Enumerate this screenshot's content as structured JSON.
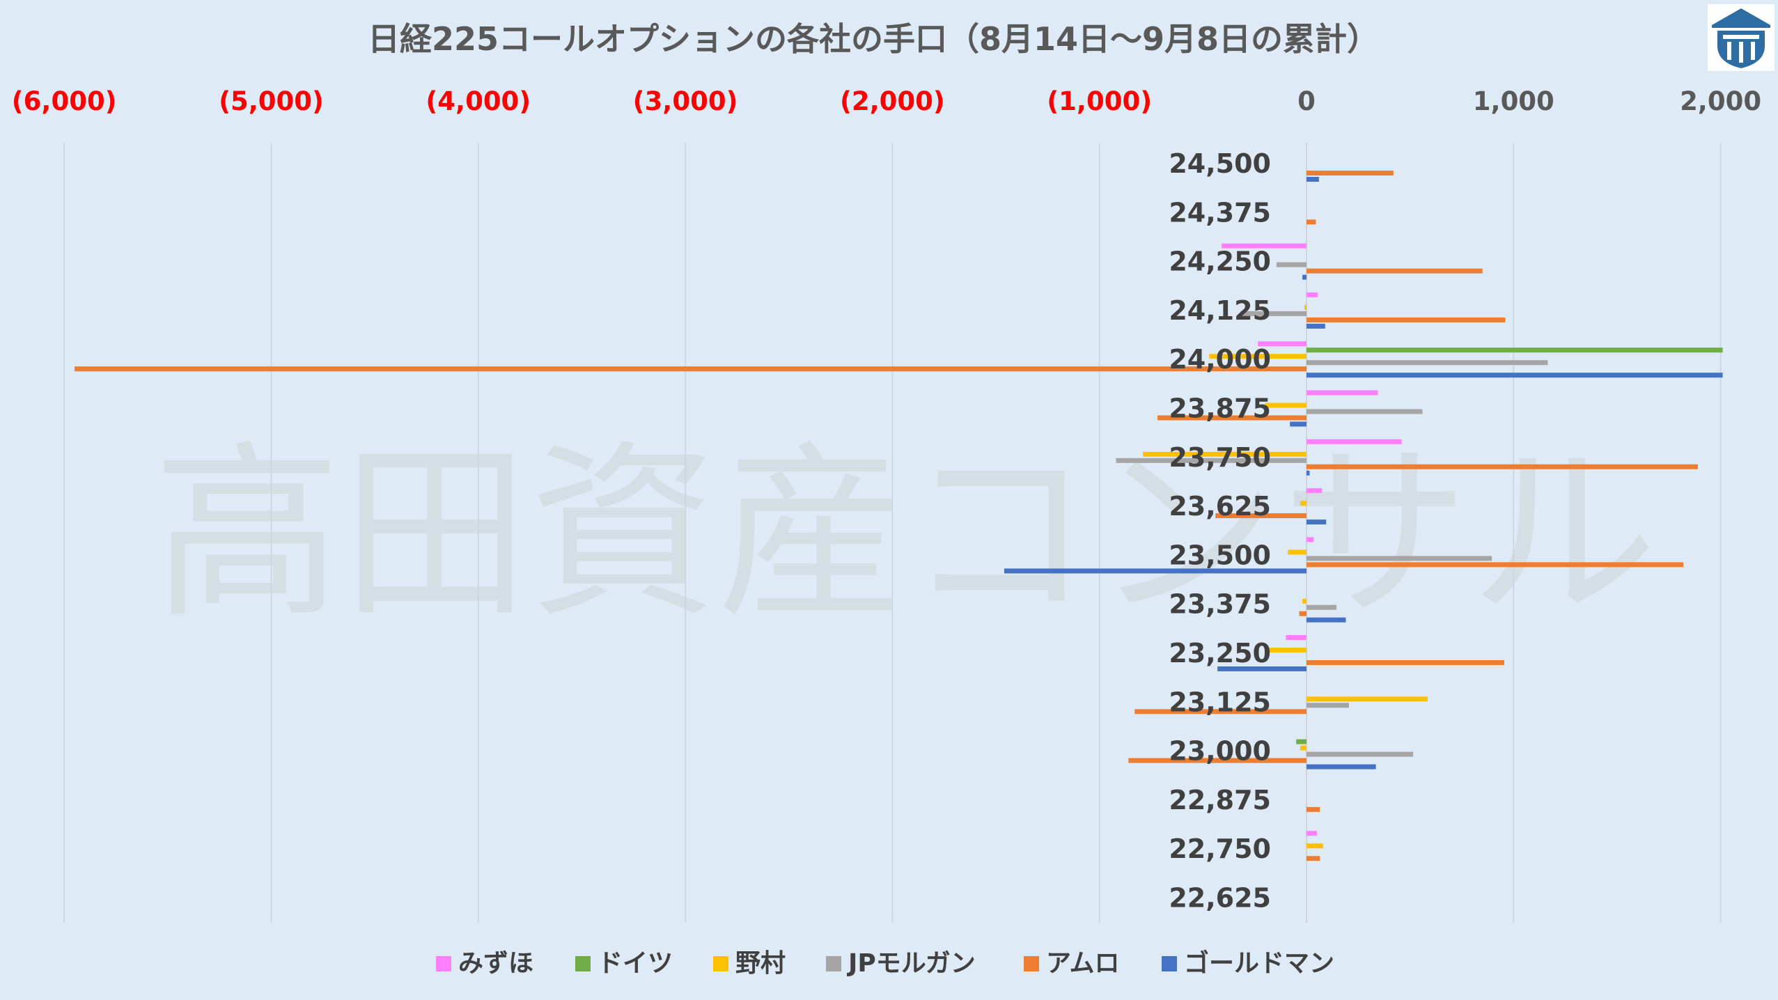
{
  "logo": {
    "name": "shield-logo",
    "colors": {
      "border": "#2e6da4",
      "fill": "#2e6da4",
      "inner": "#ffffff"
    }
  },
  "watermark": "高田資産コンサル",
  "chart_data": {
    "type": "bar",
    "orientation": "horizontal",
    "title": "日経225コールオプションの各社の手口（8月14日～9月8日の累計）",
    "xlabel": "",
    "ylabel": "",
    "xlim": [
      -6000,
      2000
    ],
    "x_ticks": [
      {
        "value": -6000,
        "label": "(6,000)"
      },
      {
        "value": -5000,
        "label": "(5,000)"
      },
      {
        "value": -4000,
        "label": "(4,000)"
      },
      {
        "value": -3000,
        "label": "(3,000)"
      },
      {
        "value": -2000,
        "label": "(2,000)"
      },
      {
        "value": -1000,
        "label": "(1,000)"
      },
      {
        "value": 0,
        "label": "0"
      },
      {
        "value": 1000,
        "label": "1,000"
      },
      {
        "value": 2000,
        "label": "2,000"
      }
    ],
    "negative_tick_color": "#ff0000",
    "grid": true,
    "legend_position": "bottom",
    "categories": [
      "24,500",
      "24,375",
      "24,250",
      "24,125",
      "24,000",
      "23,875",
      "23,750",
      "23,625",
      "23,500",
      "23,375",
      "23,250",
      "23,125",
      "23,000",
      "22,875",
      "22,750",
      "22,625"
    ],
    "series": [
      {
        "name": "みずほ",
        "color": "#ff7fff",
        "values": [
          0,
          0,
          -410,
          55,
          -235,
          345,
          460,
          75,
          35,
          0,
          -100,
          0,
          0,
          0,
          50,
          0
        ]
      },
      {
        "name": "ドイツ",
        "color": "#70ad47",
        "values": [
          0,
          0,
          0,
          0,
          2010,
          0,
          0,
          0,
          0,
          0,
          0,
          0,
          -50,
          0,
          0,
          0
        ]
      },
      {
        "name": "野村",
        "color": "#ffc000",
        "values": [
          0,
          0,
          0,
          -10,
          -470,
          -200,
          -790,
          -30,
          -90,
          -20,
          -180,
          585,
          -30,
          0,
          80,
          0
        ]
      },
      {
        "name": "JPモルガン",
        "color": "#a5a5a5",
        "values": [
          0,
          0,
          -145,
          -320,
          1165,
          560,
          -920,
          0,
          895,
          145,
          0,
          205,
          515,
          0,
          0,
          0
        ]
      },
      {
        "name": "アムロ",
        "color": "#ed7d31",
        "values": [
          420,
          45,
          850,
          960,
          -5950,
          -720,
          1890,
          -440,
          1820,
          -35,
          955,
          -830,
          -860,
          65,
          65,
          0
        ]
      },
      {
        "name": "ゴールドマン",
        "color": "#4472c4",
        "values": [
          60,
          0,
          -20,
          90,
          2010,
          -80,
          15,
          95,
          -1460,
          190,
          -430,
          0,
          335,
          0,
          0,
          0
        ]
      }
    ]
  }
}
